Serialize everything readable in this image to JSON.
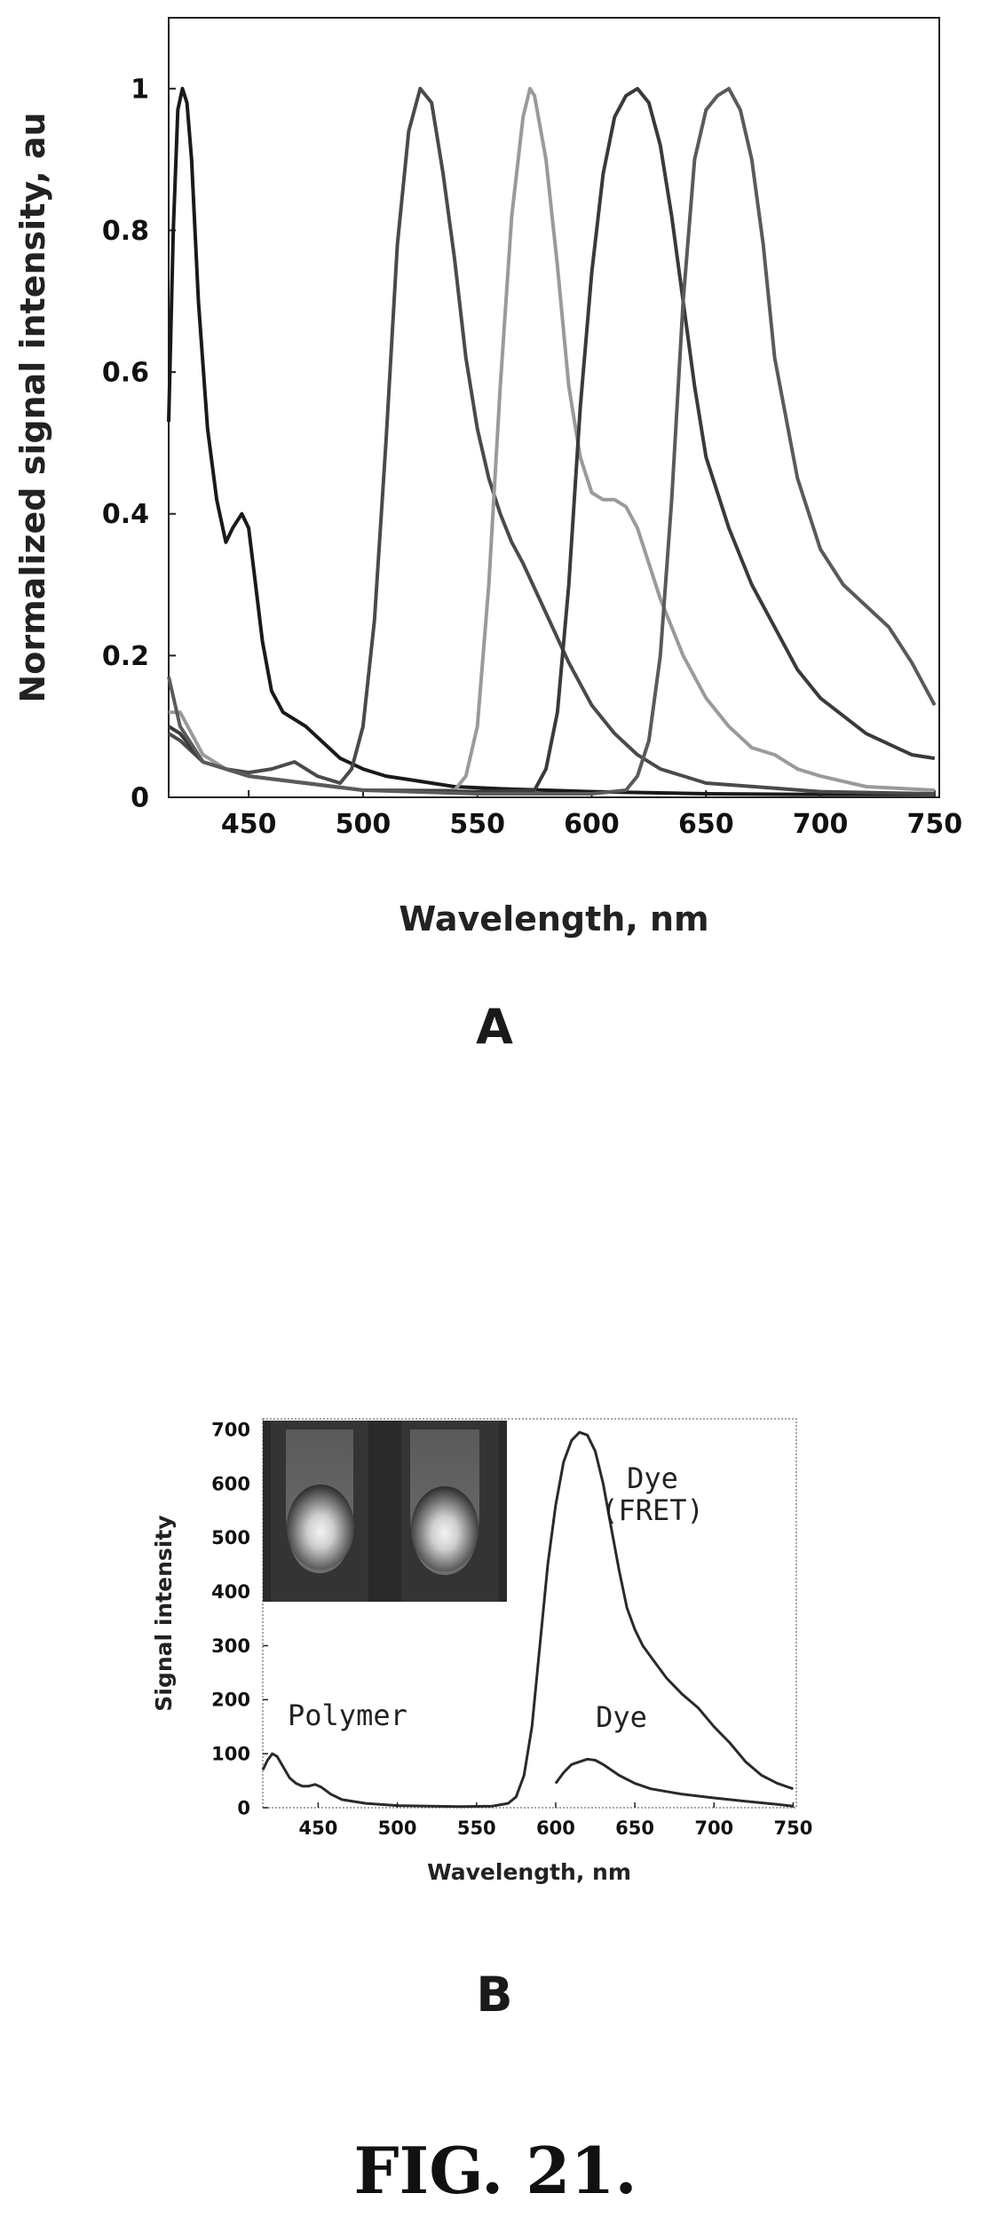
{
  "caption": "FIG. 21.",
  "chart_data": [
    {
      "type": "line",
      "panel_label": "A",
      "xlabel": "Wavelength, nm",
      "ylabel": "Normalized signal intensity, au",
      "xlim": [
        415,
        752
      ],
      "ylim": [
        0,
        1.1
      ],
      "x_ticks": [
        450,
        500,
        550,
        600,
        650,
        700,
        750
      ],
      "y_ticks": [
        0,
        0.2,
        0.4,
        0.6,
        0.8,
        1
      ],
      "y_tick_labels": [
        "0",
        "0.2",
        "0.4",
        "0.6",
        "0.8",
        "1"
      ],
      "grid": false,
      "series": [
        {
          "color": "#1a1a1a",
          "x": [
            415,
            417,
            419,
            421,
            423,
            425,
            428,
            432,
            436,
            440,
            443,
            447,
            450,
            453,
            456,
            460,
            465,
            470,
            475,
            480,
            485,
            490,
            500,
            510,
            520,
            530,
            540,
            560,
            580,
            600,
            650,
            700,
            750
          ],
          "y": [
            0.53,
            0.8,
            0.97,
            1.0,
            0.98,
            0.9,
            0.7,
            0.52,
            0.42,
            0.36,
            0.38,
            0.4,
            0.38,
            0.3,
            0.22,
            0.15,
            0.12,
            0.11,
            0.1,
            0.085,
            0.07,
            0.055,
            0.04,
            0.03,
            0.025,
            0.02,
            0.015,
            0.012,
            0.01,
            0.008,
            0.005,
            0.004,
            0.004
          ]
        },
        {
          "color": "#4a4a4a",
          "x": [
            415,
            420,
            430,
            440,
            450,
            460,
            470,
            480,
            490,
            495,
            500,
            505,
            510,
            515,
            520,
            525,
            530,
            535,
            540,
            545,
            550,
            555,
            560,
            565,
            570,
            580,
            590,
            600,
            610,
            620,
            630,
            650,
            700,
            750
          ],
          "y": [
            0.09,
            0.08,
            0.05,
            0.04,
            0.035,
            0.04,
            0.05,
            0.03,
            0.02,
            0.04,
            0.1,
            0.25,
            0.5,
            0.78,
            0.94,
            1.0,
            0.98,
            0.88,
            0.76,
            0.62,
            0.52,
            0.45,
            0.4,
            0.36,
            0.33,
            0.26,
            0.19,
            0.13,
            0.09,
            0.06,
            0.04,
            0.02,
            0.008,
            0.005
          ]
        },
        {
          "color": "#9a9a9a",
          "x": [
            415,
            420,
            430,
            440,
            450,
            500,
            540,
            545,
            550,
            555,
            560,
            565,
            570,
            573,
            575,
            580,
            585,
            590,
            595,
            600,
            605,
            610,
            615,
            620,
            625,
            630,
            640,
            650,
            660,
            670,
            680,
            690,
            700,
            720,
            750
          ],
          "y": [
            0.12,
            0.12,
            0.06,
            0.04,
            0.03,
            0.01,
            0.01,
            0.03,
            0.1,
            0.3,
            0.58,
            0.82,
            0.96,
            1.0,
            0.99,
            0.9,
            0.75,
            0.58,
            0.48,
            0.43,
            0.42,
            0.42,
            0.41,
            0.38,
            0.33,
            0.28,
            0.2,
            0.14,
            0.1,
            0.07,
            0.06,
            0.04,
            0.03,
            0.015,
            0.01
          ]
        },
        {
          "color": "#3a3a3a",
          "x": [
            415,
            420,
            430,
            440,
            450,
            500,
            550,
            575,
            580,
            585,
            590,
            595,
            600,
            605,
            610,
            615,
            620,
            625,
            630,
            635,
            640,
            645,
            650,
            660,
            670,
            680,
            690,
            700,
            720,
            740,
            750
          ],
          "y": [
            0.1,
            0.09,
            0.05,
            0.04,
            0.03,
            0.01,
            0.008,
            0.01,
            0.04,
            0.12,
            0.3,
            0.55,
            0.74,
            0.88,
            0.96,
            0.99,
            1.0,
            0.98,
            0.92,
            0.82,
            0.7,
            0.58,
            0.48,
            0.38,
            0.3,
            0.24,
            0.18,
            0.14,
            0.09,
            0.06,
            0.055
          ]
        },
        {
          "color": "#5a5a5a",
          "x": [
            415,
            420,
            430,
            440,
            450,
            500,
            550,
            600,
            615,
            620,
            625,
            630,
            635,
            640,
            645,
            650,
            655,
            660,
            665,
            670,
            675,
            680,
            690,
            700,
            710,
            720,
            730,
            740,
            750
          ],
          "y": [
            0.17,
            0.1,
            0.05,
            0.04,
            0.03,
            0.01,
            0.005,
            0.005,
            0.01,
            0.03,
            0.08,
            0.2,
            0.42,
            0.7,
            0.9,
            0.97,
            0.99,
            1.0,
            0.97,
            0.9,
            0.78,
            0.62,
            0.45,
            0.35,
            0.3,
            0.27,
            0.24,
            0.19,
            0.13
          ]
        }
      ]
    },
    {
      "type": "line",
      "panel_label": "B",
      "xlabel": "Wavelength, nm",
      "ylabel": "Signal intensity",
      "xlim": [
        415,
        752
      ],
      "ylim": [
        0,
        720
      ],
      "x_ticks": [
        450,
        500,
        550,
        600,
        650,
        700,
        750
      ],
      "y_ticks": [
        0,
        100,
        200,
        300,
        400,
        500,
        600,
        700
      ],
      "grid": false,
      "has_inset_image": true,
      "annotations": [
        {
          "lines": [
            "Polymer"
          ],
          "x": 420,
          "y": 125
        },
        {
          "lines": [
            "Dye",
            "(FRET)"
          ],
          "x": 650,
          "y": 630
        },
        {
          "lines": [
            "Dye"
          ],
          "x": 635,
          "y": 115
        }
      ],
      "series": [
        {
          "color": "#2a2a2a",
          "x": [
            415,
            418,
            421,
            424,
            428,
            432,
            436,
            440,
            444,
            448,
            452,
            458,
            465,
            480,
            500,
            520,
            540,
            560,
            570,
            575,
            580,
            585,
            590,
            595,
            600,
            605,
            610,
            615,
            620,
            625,
            630,
            635,
            640,
            645,
            650,
            655,
            660,
            670,
            680,
            690,
            700,
            710,
            720,
            730,
            740,
            750
          ],
          "y": [
            70,
            88,
            100,
            95,
            75,
            55,
            45,
            40,
            40,
            43,
            38,
            25,
            15,
            8,
            4,
            3,
            2,
            3,
            8,
            20,
            60,
            150,
            300,
            450,
            560,
            640,
            680,
            695,
            690,
            660,
            600,
            520,
            440,
            370,
            330,
            300,
            280,
            240,
            210,
            185,
            150,
            120,
            85,
            60,
            45,
            35
          ]
        },
        {
          "color": "#2a2a2a",
          "x": [
            600,
            605,
            610,
            615,
            620,
            625,
            630,
            640,
            650,
            660,
            680,
            700,
            720,
            740,
            750
          ],
          "y": [
            45,
            65,
            80,
            85,
            90,
            88,
            80,
            60,
            45,
            35,
            25,
            18,
            12,
            6,
            3
          ]
        }
      ]
    }
  ]
}
